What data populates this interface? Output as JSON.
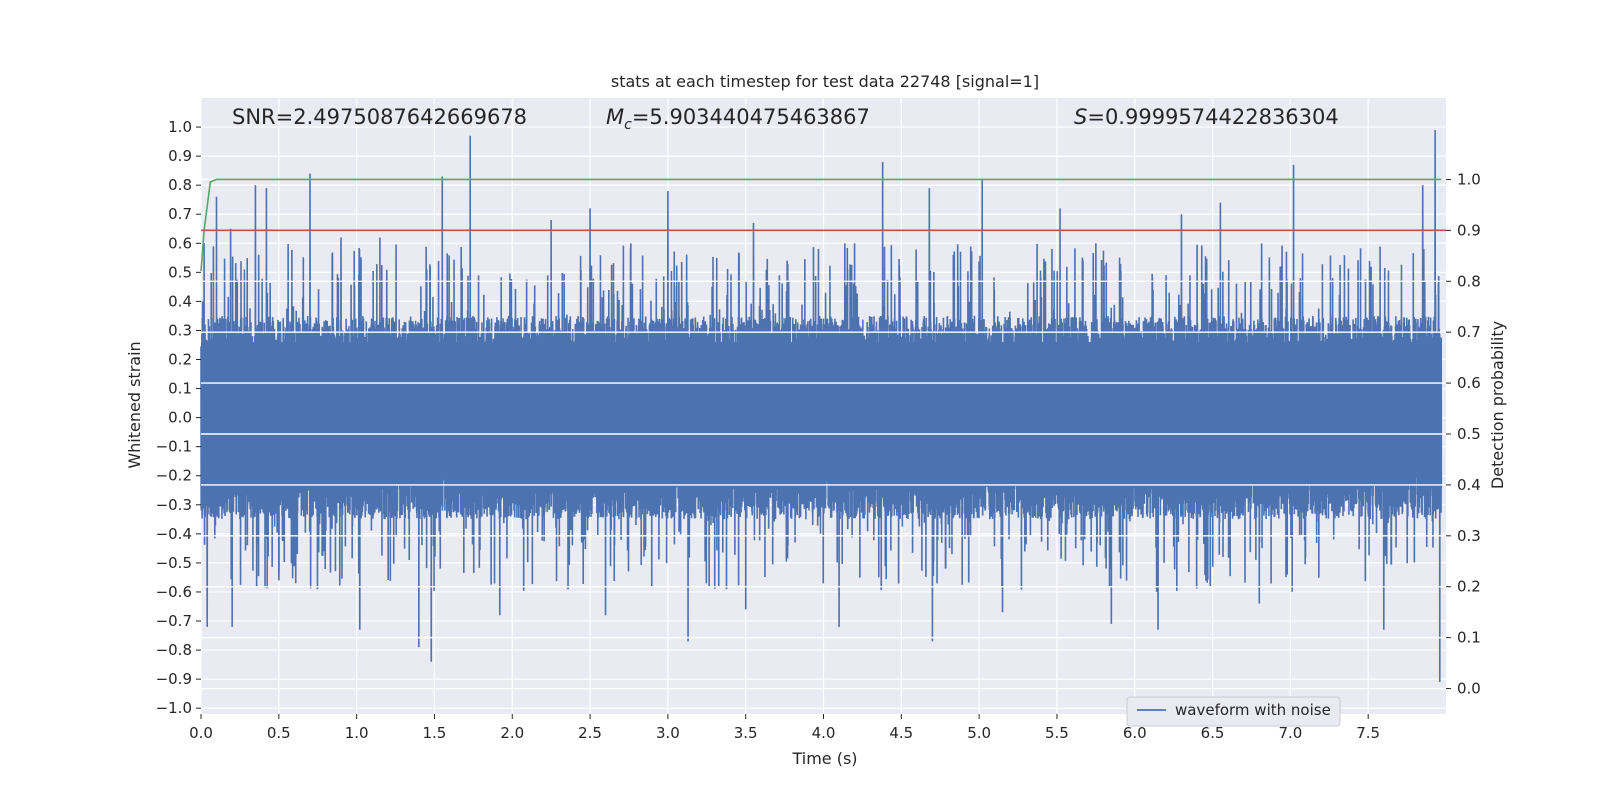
{
  "chart_data": {
    "type": "line",
    "title": "stats at each timestep for test data 22748 [signal=1]",
    "xlabel": "Time (s)",
    "ylabel_left": "Whitened strain",
    "ylabel_right": "Detection probability",
    "xlim": [
      0.0,
      8.0
    ],
    "ylim_left": [
      -1.02,
      1.1
    ],
    "ylim_right": [
      -0.05,
      1.16
    ],
    "x_ticks": [
      "0.0",
      "0.5",
      "1.0",
      "1.5",
      "2.0",
      "2.5",
      "3.0",
      "3.5",
      "4.0",
      "4.5",
      "5.0",
      "5.5",
      "6.0",
      "6.5",
      "7.0",
      "7.5"
    ],
    "y_left_ticks": [
      "1.0",
      "0.9",
      "0.8",
      "0.7",
      "0.6",
      "0.5",
      "0.4",
      "0.3",
      "0.2",
      "0.1",
      "0.0",
      "−0.1",
      "−0.2",
      "−0.3",
      "−0.4",
      "−0.5",
      "−0.6",
      "−0.7",
      "−0.8",
      "−0.9",
      "−1.0"
    ],
    "y_right_ticks": [
      "1.0",
      "0.9",
      "0.8",
      "0.7",
      "0.6",
      "0.5",
      "0.4",
      "0.3",
      "0.2",
      "0.1",
      "0.0"
    ],
    "annotations": {
      "snr": "SNR=2.4975087642669678",
      "mc_symbol": "M",
      "mc_sub": "c",
      "mc_value": "=5.903440475463867",
      "s_symbol": "S",
      "s_value": "=0.9999574422836304"
    },
    "series": [
      {
        "name": "waveform with noise",
        "axis": "left",
        "color": "#4c72b0",
        "sample_count": 8000,
        "envelope_band": [
          -0.18,
          0.26
        ],
        "peaks_pos": [
          [
            0.02,
            0.6
          ],
          [
            0.1,
            0.76
          ],
          [
            0.19,
            0.65
          ],
          [
            0.35,
            0.8
          ],
          [
            0.42,
            0.79
          ],
          [
            0.7,
            0.84
          ],
          [
            0.9,
            0.62
          ],
          [
            1.02,
            0.59
          ],
          [
            1.15,
            0.62
          ],
          [
            1.4,
            0.8
          ],
          [
            1.55,
            0.83
          ],
          [
            1.73,
            0.97
          ],
          [
            2.25,
            0.68
          ],
          [
            2.5,
            0.72
          ],
          [
            3.0,
            0.78
          ],
          [
            3.55,
            0.67
          ],
          [
            4.2,
            0.6
          ],
          [
            4.38,
            0.88
          ],
          [
            4.68,
            0.79
          ],
          [
            5.02,
            0.82
          ],
          [
            5.52,
            0.72
          ],
          [
            5.75,
            0.6
          ],
          [
            6.3,
            0.7
          ],
          [
            6.55,
            0.74
          ],
          [
            7.02,
            0.87
          ],
          [
            7.85,
            0.8
          ],
          [
            7.93,
            0.99
          ]
        ],
        "peaks_neg": [
          [
            0.04,
            -0.72
          ],
          [
            0.2,
            -0.72
          ],
          [
            0.5,
            -0.56
          ],
          [
            1.02,
            -0.73
          ],
          [
            1.4,
            -0.79
          ],
          [
            1.48,
            -0.84
          ],
          [
            1.92,
            -0.68
          ],
          [
            2.6,
            -0.68
          ],
          [
            3.13,
            -0.77
          ],
          [
            3.5,
            -0.66
          ],
          [
            4.1,
            -0.72
          ],
          [
            4.7,
            -0.77
          ],
          [
            5.15,
            -0.67
          ],
          [
            5.85,
            -0.71
          ],
          [
            6.15,
            -0.73
          ],
          [
            6.8,
            -0.64
          ],
          [
            7.6,
            -0.73
          ],
          [
            7.96,
            -0.91
          ]
        ]
      },
      {
        "name": "",
        "axis": "right",
        "color": "#55a868",
        "x": [
          0.0,
          0.02,
          0.06,
          0.1,
          0.15,
          0.3,
          1.0,
          2.0,
          3.0,
          4.0,
          5.0,
          6.0,
          7.0,
          7.97
        ],
        "y": [
          0.82,
          0.9,
          0.995,
          1.0,
          1.0,
          1.0,
          1.0,
          1.0,
          1.0,
          1.0,
          1.0,
          1.0,
          1.0,
          1.0
        ]
      },
      {
        "name": "",
        "axis": "right",
        "color": "#c44e52",
        "x": [
          0.0,
          8.0
        ],
        "y": [
          0.9,
          0.9
        ]
      }
    ],
    "legend": {
      "entries": [
        "waveform with noise"
      ],
      "placement": "lower right"
    },
    "grid": true,
    "style": {
      "background": "#eaeaf2",
      "grid_color": "#ffffff"
    }
  }
}
